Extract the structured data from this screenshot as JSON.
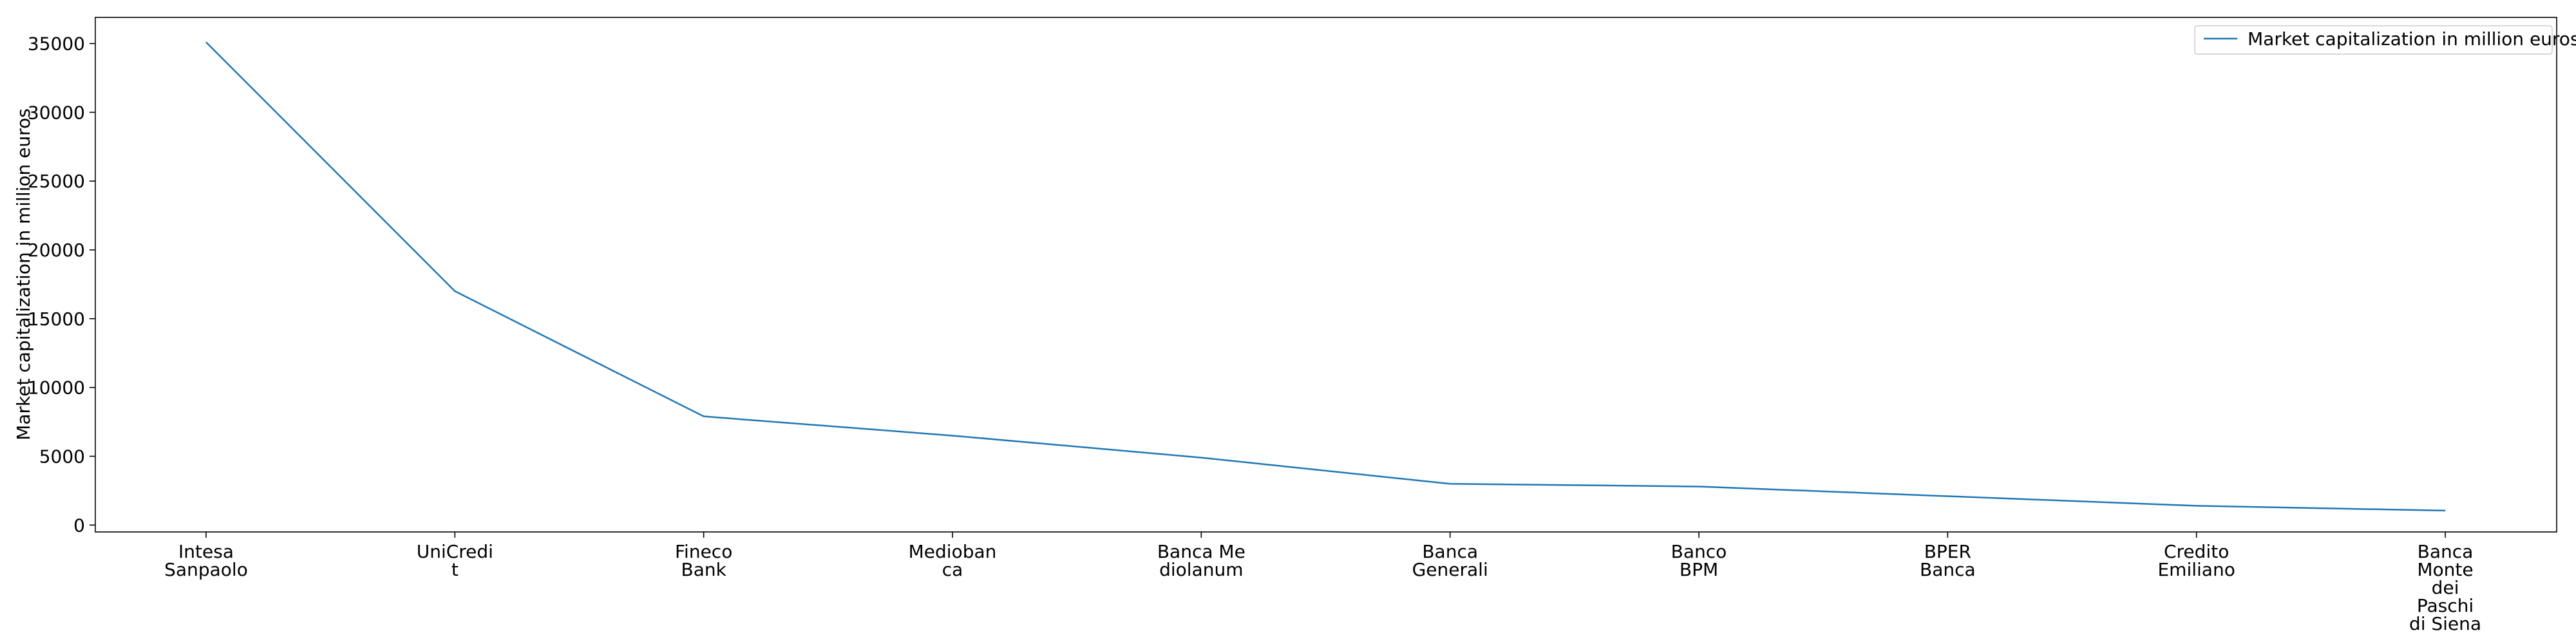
{
  "chart_data": {
    "type": "line",
    "title": "",
    "xlabel": "",
    "ylabel": "Market capitalization in million euros",
    "categories": [
      [
        "Intesa",
        "Sanpaolo"
      ],
      [
        "UniCredi",
        "t"
      ],
      [
        "Fineco",
        "Bank"
      ],
      [
        "Medioban",
        "ca"
      ],
      [
        "Banca Me",
        "diolanum"
      ],
      [
        "Banca",
        "Generali"
      ],
      [
        "Banco",
        "BPM"
      ],
      [
        "BPER",
        "Banca"
      ],
      [
        "Credito",
        "Emiliano"
      ],
      [
        "Banca",
        "Monte",
        "dei",
        "Paschi",
        "di Siena"
      ]
    ],
    "series": [
      {
        "name": "Market capitalization in million euros",
        "color": "#1f77b4",
        "values": [
          35100,
          17000,
          7900,
          6500,
          4900,
          3000,
          2800,
          2100,
          1400,
          1050
        ]
      }
    ],
    "ylim": [
      -500,
      36900
    ],
    "yticks": [
      0,
      5000,
      10000,
      15000,
      20000,
      25000,
      30000,
      35000
    ],
    "grid": false,
    "legend_position": "top-right"
  }
}
